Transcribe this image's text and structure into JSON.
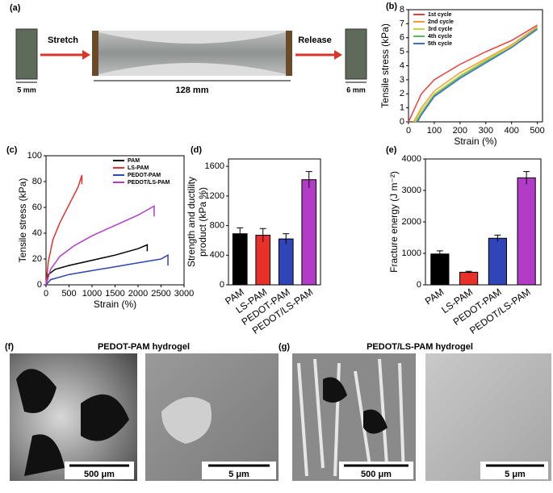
{
  "panel_a": {
    "label": "(a)",
    "stretch": "Stretch",
    "release": "Release",
    "width_before": "5 mm",
    "width_stretched": "128 mm",
    "width_after": "6 mm"
  },
  "chart_data": [
    {
      "type": "line",
      "panel": "(b)",
      "xlabel": "Strain (%)",
      "ylabel": "Tensile stress (kPa)",
      "xlim": [
        0,
        520
      ],
      "ylim": [
        0,
        8
      ],
      "xticks": [
        0,
        100,
        200,
        300,
        400,
        500
      ],
      "yticks": [
        0,
        1,
        2,
        3,
        4,
        5,
        6,
        7,
        8
      ],
      "legend": "upper left",
      "series": [
        {
          "name": "1st cycle",
          "color": "#e8403a",
          "x": [
            0,
            50,
            100,
            200,
            300,
            400,
            500
          ],
          "values": [
            0,
            2,
            3,
            4.1,
            5,
            5.8,
            6.9
          ]
        },
        {
          "name": "2nd cycle",
          "color": "#f39c3a",
          "x": [
            20,
            50,
            100,
            200,
            300,
            400,
            500
          ],
          "values": [
            0,
            1,
            2.2,
            3.5,
            4.5,
            5.5,
            6.8
          ]
        },
        {
          "name": "3rd cycle",
          "color": "#c9d640",
          "x": [
            25,
            50,
            100,
            200,
            300,
            400,
            500
          ],
          "values": [
            0,
            0.8,
            2,
            3.3,
            4.4,
            5.4,
            6.7
          ]
        },
        {
          "name": "4th cycle",
          "color": "#5cb85c",
          "x": [
            30,
            50,
            100,
            200,
            300,
            400,
            500
          ],
          "values": [
            0,
            0.6,
            1.9,
            3.2,
            4.3,
            5.3,
            6.7
          ]
        },
        {
          "name": "5th cycle",
          "color": "#3b6fd6",
          "x": [
            35,
            50,
            100,
            200,
            300,
            400,
            500
          ],
          "values": [
            0,
            0.5,
            1.8,
            3.1,
            4.2,
            5.3,
            6.6
          ]
        }
      ]
    },
    {
      "type": "line",
      "panel": "(c)",
      "xlabel": "Strain (%)",
      "ylabel": "Tensile stress (kPa)",
      "xlim": [
        0,
        3000
      ],
      "ylim": [
        0,
        100
      ],
      "xticks": [
        0,
        500,
        1000,
        1500,
        2000,
        2500,
        3000
      ],
      "yticks": [
        0,
        20,
        40,
        60,
        80,
        100
      ],
      "legend": "upper right",
      "series": [
        {
          "name": "PAM",
          "color": "#000000",
          "x": [
            0,
            50,
            200,
            500,
            1000,
            1500,
            2000,
            2200,
            2200
          ],
          "values": [
            0,
            8,
            12,
            15,
            19,
            23,
            28,
            31,
            26
          ]
        },
        {
          "name": "LS-PAM",
          "color": "#e8302a",
          "x": [
            0,
            50,
            150,
            300,
            500,
            700,
            780,
            780
          ],
          "values": [
            0,
            18,
            35,
            48,
            62,
            76,
            85,
            78
          ]
        },
        {
          "name": "PEDOT-PAM",
          "color": "#2f45b8",
          "x": [
            0,
            100,
            500,
            1000,
            1500,
            2000,
            2500,
            2650,
            2650
          ],
          "values": [
            0,
            4,
            8,
            11,
            14,
            17,
            20,
            23,
            15
          ]
        },
        {
          "name": "PEDOT/LS-PAM",
          "color": "#b23cc8",
          "x": [
            0,
            100,
            300,
            600,
            1000,
            1500,
            2000,
            2300,
            2350,
            2350
          ],
          "values": [
            0,
            12,
            22,
            30,
            38,
            46,
            54,
            60,
            61,
            53
          ]
        }
      ]
    },
    {
      "type": "bar",
      "panel": "(d)",
      "ylabel": "Strength and ductility",
      "ylabel2": "product (kPa %)",
      "ylim": [
        0,
        1700
      ],
      "yticks": [
        0,
        400,
        800,
        1200,
        1600
      ],
      "categories": [
        "PAM",
        "LS-PAM",
        "PEDOT-PAM",
        "PEDOT/LS-PAM"
      ],
      "values": [
        690,
        670,
        620,
        1420
      ],
      "errors": [
        80,
        90,
        70,
        110
      ],
      "colors": [
        "#000000",
        "#e8302a",
        "#2f45b8",
        "#b23cc8"
      ]
    },
    {
      "type": "bar",
      "panel": "(e)",
      "ylabel": "Fracture energy (J m⁻²)",
      "ylim": [
        0,
        4000
      ],
      "yticks": [
        0,
        1000,
        2000,
        3000,
        4000
      ],
      "categories": [
        "PAM",
        "LS-PAM",
        "PEDOT-PAM",
        "PEDOT/LS-PAM"
      ],
      "values": [
        980,
        400,
        1480,
        3400
      ],
      "errors": [
        100,
        30,
        100,
        200
      ],
      "colors": [
        "#000000",
        "#e8302a",
        "#2f45b8",
        "#b23cc8"
      ]
    }
  ],
  "panel_f": {
    "label": "(f)",
    "title": "PEDOT-PAM hydrogel",
    "scale_left": "500 μm",
    "scale_right": "5 μm"
  },
  "panel_g": {
    "label": "(g)",
    "title": "PEDOT/LS-PAM hydrogel",
    "scale_left": "500 μm",
    "scale_right": "5 μm"
  }
}
